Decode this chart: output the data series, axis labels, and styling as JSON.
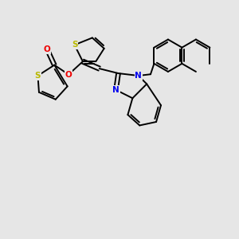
{
  "background_color": "#e6e6e6",
  "bond_color": "#000000",
  "S_color": "#b8b800",
  "N_color": "#0000ee",
  "O_color": "#ee0000",
  "line_width": 1.4,
  "figsize": [
    3.0,
    3.0
  ],
  "dpi": 100,
  "xlim": [
    0,
    10
  ],
  "ylim": [
    0,
    10
  ]
}
